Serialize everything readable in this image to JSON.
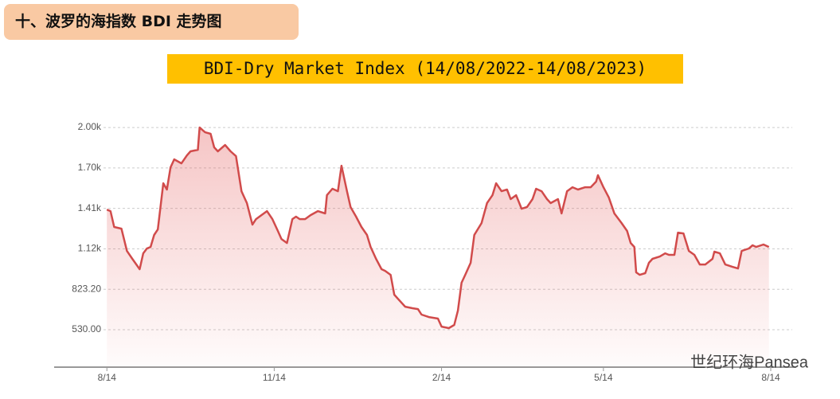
{
  "header": {
    "title": "十、波罗的海指数 BDI 走势图"
  },
  "watermark": "世纪环海Pansea",
  "chart_data": {
    "type": "line",
    "title": "BDI-Dry Market Index (14/08/2022-14/08/2023)",
    "color": "#d14b4b",
    "grid": true,
    "x": [
      0,
      2,
      4,
      8,
      11,
      14,
      18,
      20,
      22,
      24,
      26,
      28,
      31,
      33,
      35,
      37,
      41,
      44,
      46,
      50,
      51,
      54,
      57,
      59,
      61,
      65,
      68,
      71,
      74,
      77,
      80,
      82,
      85,
      88,
      91,
      94,
      96,
      99,
      102,
      104,
      106,
      109,
      112,
      116,
      120,
      121,
      124,
      127,
      129,
      132,
      134,
      137,
      140,
      143,
      145,
      148,
      151,
      153,
      156,
      158,
      160,
      164,
      168,
      171,
      173,
      177,
      182,
      184,
      188,
      191,
      193,
      195,
      197,
      200,
      202,
      206,
      209,
      212,
      214,
      217,
      220,
      222,
      225,
      228,
      231,
      234,
      236,
      239,
      242,
      244,
      248,
      250,
      253,
      256,
      259,
      263,
      266,
      269,
      270,
      273,
      276,
      279,
      283,
      286,
      288,
      290,
      291,
      293,
      296,
      298,
      300,
      304,
      307,
      309,
      312,
      314,
      317,
      320,
      323,
      326,
      329,
      333,
      334,
      337,
      340,
      344,
      347,
      349,
      353,
      355,
      357,
      361,
      364
    ],
    "values": [
      1401,
      1390,
      1275,
      1263,
      1101,
      1044,
      969,
      1084,
      1119,
      1130,
      1217,
      1257,
      1592,
      1546,
      1707,
      1765,
      1736,
      1794,
      1823,
      1834,
      1996,
      1961,
      1950,
      1852,
      1823,
      1869,
      1823,
      1788,
      1534,
      1448,
      1292,
      1332,
      1361,
      1390,
      1332,
      1246,
      1188,
      1159,
      1332,
      1350,
      1332,
      1332,
      1361,
      1390,
      1373,
      1505,
      1552,
      1534,
      1719,
      1534,
      1419,
      1350,
      1275,
      1217,
      1130,
      1044,
      969,
      957,
      928,
      784,
      755,
      697,
      686,
      680,
      640,
      622,
      611,
      553,
      542,
      565,
      669,
      871,
      928,
      1015,
      1217,
      1303,
      1448,
      1505,
      1592,
      1534,
      1546,
      1477,
      1505,
      1407,
      1419,
      1477,
      1552,
      1534,
      1477,
      1448,
      1477,
      1373,
      1534,
      1563,
      1546,
      1563,
      1563,
      1604,
      1650,
      1563,
      1488,
      1373,
      1303,
      1246,
      1159,
      1130,
      946,
      928,
      940,
      1015,
      1044,
      1061,
      1084,
      1073,
      1073,
      1234,
      1228,
      1101,
      1073,
      1003,
      1003,
      1044,
      1096,
      1084,
      1003,
      986,
      974,
      1101,
      1119,
      1142,
      1130,
      1148,
      1130
    ],
    "xlim": [
      -29,
      379
    ],
    "xticks": [
      {
        "value": 0,
        "label": "8/14"
      },
      {
        "value": 92,
        "label": "11/14"
      },
      {
        "value": 184,
        "label": "2/14"
      },
      {
        "value": 273,
        "label": "5/14"
      },
      {
        "value": 365,
        "label": "8/14"
      }
    ],
    "ylim": [
      259,
      2083
    ],
    "yticks": [
      {
        "value": 530,
        "label": "530.00"
      },
      {
        "value": 823.2,
        "label": "823.20"
      },
      {
        "value": 1116.4,
        "label": "1.12k"
      },
      {
        "value": 1409.6,
        "label": "1.41k"
      },
      {
        "value": 1702.8,
        "label": "1.70k"
      },
      {
        "value": 1996,
        "label": "2.00k"
      }
    ]
  }
}
